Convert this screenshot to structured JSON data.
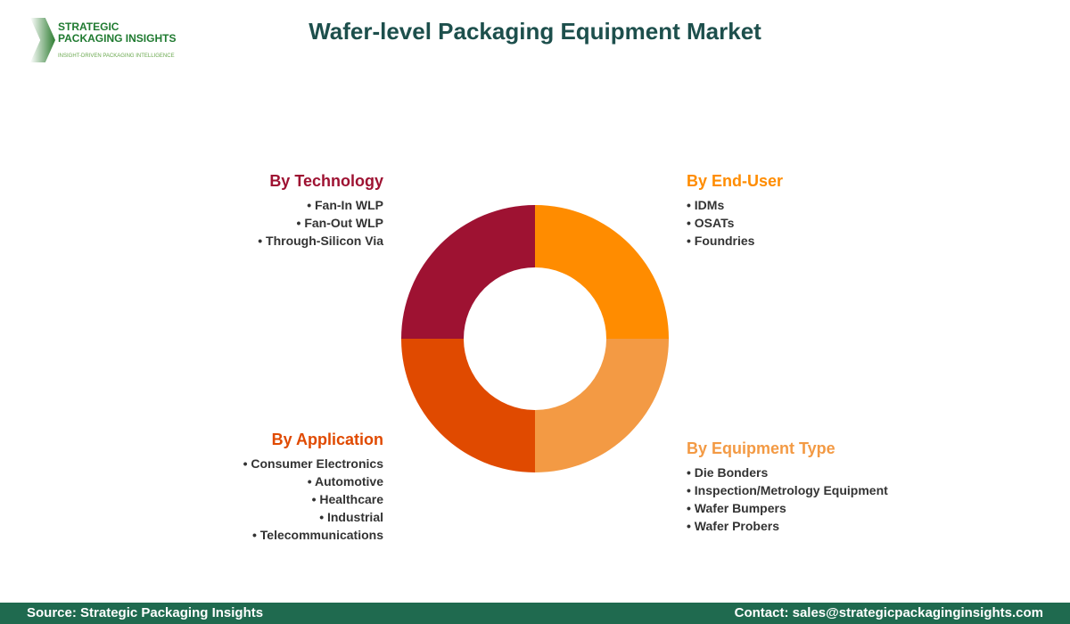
{
  "logo": {
    "line1": "STRATEGIC",
    "line2": "PACKAGING INSIGHTS",
    "tagline": "INSIGHT-DRIVEN PACKAGING INTELLIGENCE"
  },
  "title": "Wafer-level Packaging Equipment Market",
  "segments": {
    "technology": {
      "title": "By Technology",
      "color": "#9e1232",
      "items": [
        "Fan-In WLP",
        "Fan-Out WLP",
        "Through-Silicon Via"
      ]
    },
    "end_user": {
      "title": "By End-User",
      "color": "#ff8c00",
      "items": [
        "IDMs",
        "OSATs",
        "Foundries"
      ]
    },
    "application": {
      "title": "By Application",
      "color": "#e04a00",
      "items": [
        "Consumer Electronics",
        "Automotive",
        "Healthcare",
        "Industrial",
        "Telecommunications"
      ]
    },
    "equipment": {
      "title": "By Equipment Type",
      "color": "#f39a44",
      "items": [
        "Die Bonders",
        "Inspection/Metrology Equipment",
        "Wafer Bumpers",
        "Wafer Probers"
      ]
    }
  },
  "chart_data": {
    "type": "pie",
    "donut": true,
    "categories": [
      "By End-User",
      "By Equipment Type",
      "By Application",
      "By Technology"
    ],
    "values": [
      25,
      25,
      25,
      25
    ],
    "colors": [
      "#ff8c00",
      "#f39a44",
      "#e04a00",
      "#9e1232"
    ]
  },
  "footer": {
    "source": "Source: Strategic Packaging Insights",
    "contact": "Contact: sales@strategicpackaginginsights.com"
  }
}
